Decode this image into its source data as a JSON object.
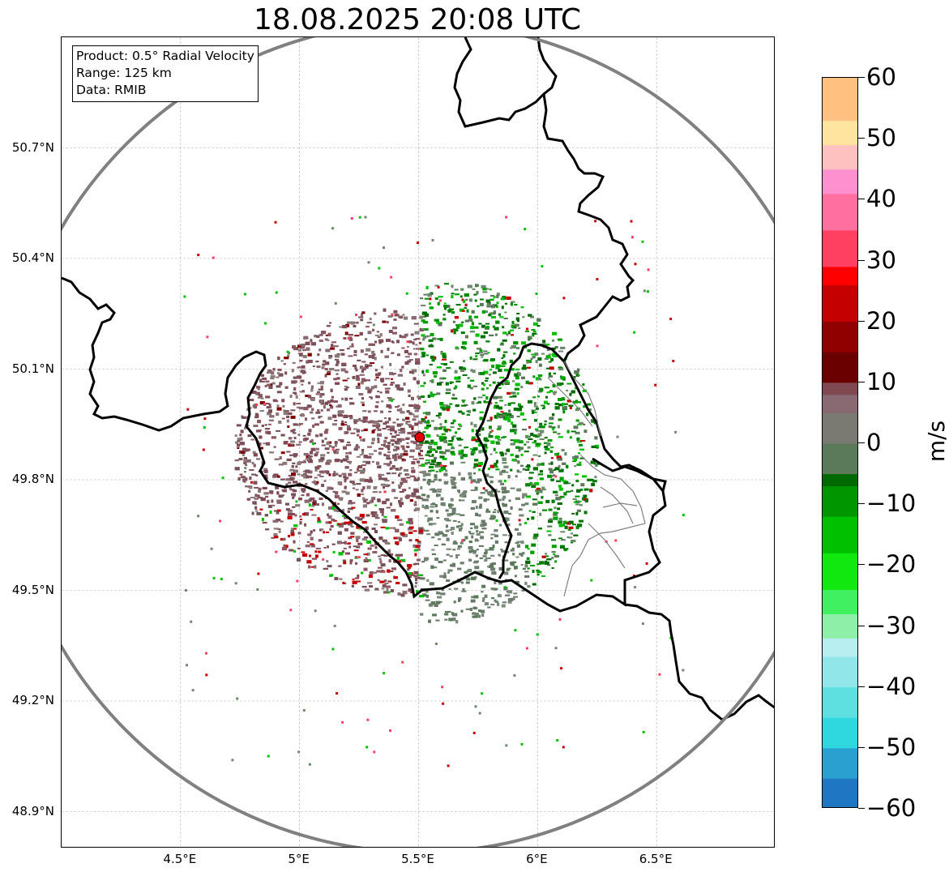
{
  "title": "18.08.2025 20:08 UTC",
  "info_box": {
    "product": "Product: 0.5° Radial Velocity",
    "range": "Range: 125 km",
    "source": "Data: RMIB"
  },
  "axes": {
    "lat_labels": [
      "50.7°N",
      "50.4°N",
      "50.1°N",
      "49.8°N",
      "49.5°N",
      "49.2°N",
      "48.9°N"
    ],
    "lon_labels": [
      "4.5°E",
      "5°E",
      "5.5°E",
      "6°E",
      "6.5°E"
    ],
    "lat_values": [
      50.7,
      50.4,
      50.1,
      49.8,
      49.5,
      49.2,
      48.9
    ],
    "lon_values": [
      4.5,
      5.0,
      5.5,
      6.0,
      6.5
    ],
    "lon_range": [
      4.0,
      7.0
    ],
    "lat_range": [
      48.8,
      51.0
    ]
  },
  "radar": {
    "site_lon": 5.505,
    "site_lat": 49.915,
    "range_km": 125,
    "site_color": "#e00000",
    "range_ring_color": "#808080"
  },
  "colorbar": {
    "unit": "m/s",
    "min": -60,
    "max": 60,
    "tick_values": [
      60,
      50,
      40,
      30,
      20,
      10,
      0,
      -10,
      -20,
      -30,
      -40,
      -50,
      -60
    ],
    "tick_labels": [
      "60",
      "50",
      "40",
      "30",
      "20",
      "10",
      "0",
      "−10",
      "−20",
      "−30",
      "−40",
      "−50",
      "−60"
    ],
    "stops": [
      {
        "v": -60,
        "c": "#1f77c4"
      },
      {
        "v": -55,
        "c": "#2aa0d0"
      },
      {
        "v": -50,
        "c": "#2ed8de"
      },
      {
        "v": -45,
        "c": "#5fe0e0"
      },
      {
        "v": -40,
        "c": "#90e6e8"
      },
      {
        "v": -35,
        "c": "#b8eef0"
      },
      {
        "v": -32,
        "c": "#8ef0a8"
      },
      {
        "v": -28,
        "c": "#40f060"
      },
      {
        "v": -24,
        "c": "#10e810"
      },
      {
        "v": -18,
        "c": "#00c000"
      },
      {
        "v": -12,
        "c": "#009600"
      },
      {
        "v": -7,
        "c": "#006a00"
      },
      {
        "v": -5,
        "c": "#5a7a5a"
      },
      {
        "v": 0,
        "c": "#7a7a72"
      },
      {
        "v": 5,
        "c": "#8a6a72"
      },
      {
        "v": 8,
        "c": "#804850"
      },
      {
        "v": 10,
        "c": "#6a0000"
      },
      {
        "v": 15,
        "c": "#900000"
      },
      {
        "v": 20,
        "c": "#c40000"
      },
      {
        "v": 26,
        "c": "#ff0000"
      },
      {
        "v": 29,
        "c": "#ff4060"
      },
      {
        "v": 35,
        "c": "#ff70a0"
      },
      {
        "v": 41,
        "c": "#ff90d0"
      },
      {
        "v": 45,
        "c": "#ffc0c0"
      },
      {
        "v": 49,
        "c": "#ffe4a0"
      },
      {
        "v": 53,
        "c": "#ffc080"
      },
      {
        "v": 60,
        "c": "#ff9a55"
      }
    ]
  },
  "colors": {
    "grid": "#b0b0b0",
    "border": "#000000",
    "sub_border": "#808080",
    "inbound": "#006a00",
    "inbound_light": "#5a7a5a",
    "outbound": "#80505a",
    "outbound_strong": "#800000"
  }
}
